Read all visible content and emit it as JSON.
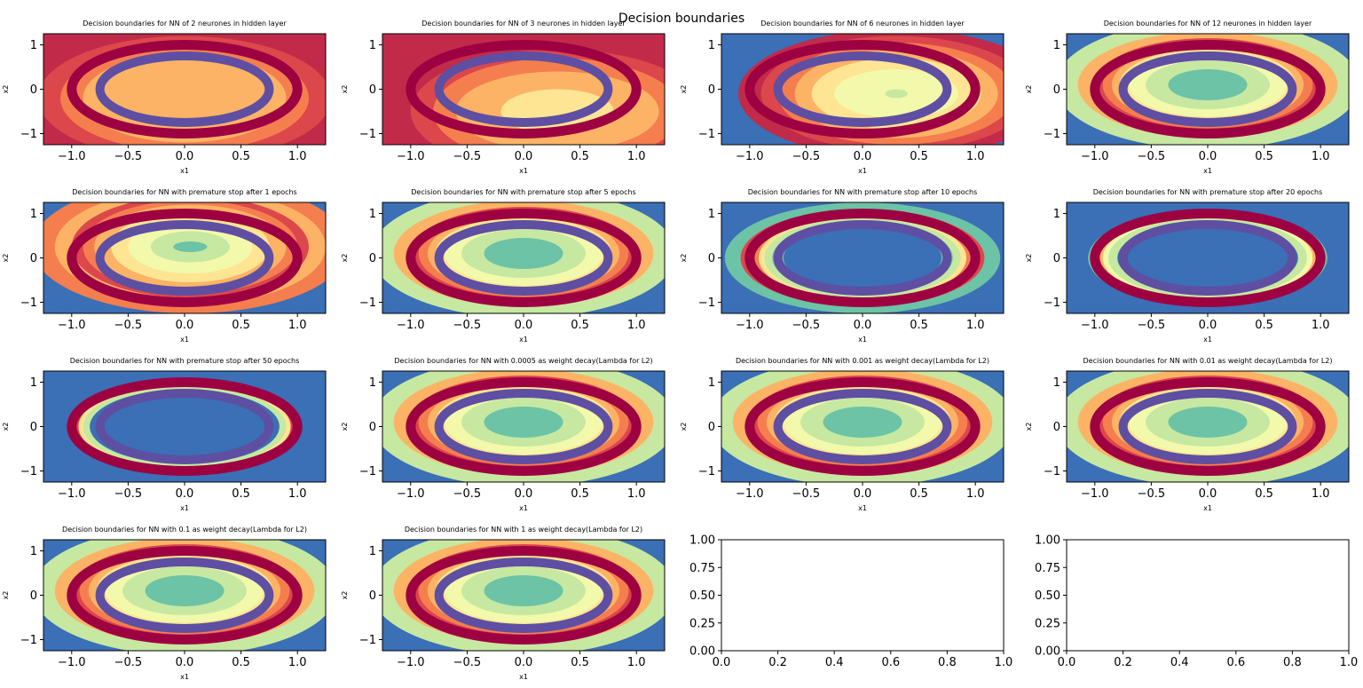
{
  "figure": {
    "suptitle": "Decision boundaries"
  },
  "colors": {
    "spectral": [
      "#3b6fb6",
      "#6cc3a6",
      "#c6e8a1",
      "#f2f9ab",
      "#fee593",
      "#fdb365",
      "#f57e4f",
      "#dc474b",
      "#c22a49"
    ],
    "outer_ring": "#9e0142",
    "inner_ring": "#5e4fa2",
    "axes_frame": "#000000"
  },
  "chart_data": [
    {
      "type": "contour",
      "title": "Decision boundaries for NN of 2 neurones in hidden layer",
      "xlabel": "x1",
      "ylabel": "x2",
      "xlim": [
        -1.25,
        1.25
      ],
      "ylim": [
        -1.25,
        1.25
      ],
      "xticks": [
        "−1.0",
        "−0.5",
        "0.0",
        "0.5",
        "1.0"
      ],
      "yticks": [
        "−1",
        "0",
        "1"
      ],
      "bands": [
        "#fdb365",
        "#f57e4f",
        "#dc474b",
        "#c22a49"
      ],
      "center": [
        0.0,
        -0.2
      ],
      "rx": [
        0.9,
        1.1,
        1.3,
        1.6
      ],
      "ry": [
        1.0,
        1.2,
        1.4,
        1.7
      ],
      "rings": {
        "outer": [
          1.0,
          1.0
        ],
        "inner": [
          0.75,
          0.75
        ]
      }
    },
    {
      "type": "contour",
      "title": "Decision boundaries for NN of 3 neurones in hidden layer",
      "xlabel": "x1",
      "ylabel": "x2",
      "xlim": [
        -1.25,
        1.25
      ],
      "ylim": [
        -1.25,
        1.25
      ],
      "xticks": [
        "−1.0",
        "−0.5",
        "0.0",
        "0.5",
        "1.0"
      ],
      "yticks": [
        "−1",
        "0",
        "1"
      ],
      "bands": [
        "#fee593",
        "#fdb365",
        "#f57e4f",
        "#dc474b",
        "#c22a49"
      ],
      "center": [
        0.3,
        -0.5
      ],
      "rx": [
        0.5,
        0.9,
        1.1,
        1.3,
        1.6
      ],
      "ry": [
        0.5,
        0.9,
        1.2,
        1.4,
        1.7
      ],
      "rings": {
        "outer": [
          1.0,
          1.0
        ],
        "inner": [
          0.75,
          0.75
        ]
      }
    },
    {
      "type": "contour",
      "title": "Decision boundaries for NN of 6 neurones in hidden layer",
      "xlabel": "x1",
      "ylabel": "x2",
      "xlim": [
        -1.25,
        1.25
      ],
      "ylim": [
        -1.25,
        1.25
      ],
      "xticks": [
        "−1.0",
        "−0.5",
        "0.0",
        "0.5",
        "1.0"
      ],
      "yticks": [
        "−1",
        "0",
        "1"
      ],
      "bands": [
        "#c6e8a1",
        "#f2f9ab",
        "#fee593",
        "#fdb365",
        "#f57e4f",
        "#dc474b",
        "#c22a49",
        "#3b6fb6"
      ],
      "center": [
        0.3,
        -0.1
      ],
      "rx": [
        0.1,
        0.55,
        0.75,
        0.9,
        1.05,
        1.2,
        1.4,
        1.6
      ],
      "ry": [
        0.1,
        0.55,
        0.8,
        1.0,
        1.15,
        1.3,
        1.45,
        1.7
      ],
      "rings": {
        "outer": [
          1.0,
          1.0
        ],
        "inner": [
          0.75,
          0.75
        ]
      }
    },
    {
      "type": "contour",
      "title": "Decision boundaries for NN of 12 neurones in hidden layer",
      "xlabel": "x1",
      "ylabel": "x2",
      "xlim": [
        -1.25,
        1.25
      ],
      "ylim": [
        -1.25,
        1.25
      ],
      "xticks": [
        "−1.0",
        "−0.5",
        "0.0",
        "0.5",
        "1.0"
      ],
      "yticks": [
        "−1",
        "0",
        "1"
      ],
      "bands": [
        "#6cc3a6",
        "#c6e8a1",
        "#f2f9ab",
        "#fee593",
        "#fdb365",
        "#f57e4f",
        "#dc474b",
        "#fdb365",
        "#c6e8a1",
        "#3b6fb6"
      ],
      "center": [
        0.0,
        0.1
      ],
      "rx": [
        0.35,
        0.55,
        0.7,
        0.78,
        0.85,
        0.93,
        1.0,
        1.15,
        1.35,
        1.7
      ],
      "ry": [
        0.35,
        0.55,
        0.72,
        0.82,
        0.9,
        0.98,
        1.05,
        1.2,
        1.45,
        1.75
      ],
      "rings": {
        "outer": [
          1.0,
          1.0
        ],
        "inner": [
          0.75,
          0.75
        ]
      }
    },
    {
      "type": "contour",
      "title": "Decision boundaries for NN with premature stop after 1 epochs",
      "xlabel": "x1",
      "ylabel": "x2",
      "xlim": [
        -1.25,
        1.25
      ],
      "ylim": [
        -1.25,
        1.25
      ],
      "xticks": [
        "−1.0",
        "−0.5",
        "0.0",
        "0.5",
        "1.0"
      ],
      "yticks": [
        "−1",
        "0",
        "1"
      ],
      "bands": [
        "#6cc3a6",
        "#c6e8a1",
        "#f2f9ab",
        "#fee593",
        "#fdb365",
        "#f57e4f",
        "#dc474b",
        "#fdb365",
        "#f57e4f",
        "#3b6fb6"
      ],
      "center": [
        0.05,
        0.25
      ],
      "rx": [
        0.15,
        0.35,
        0.55,
        0.7,
        0.85,
        0.95,
        1.05,
        1.2,
        1.4,
        1.75
      ],
      "ry": [
        0.12,
        0.35,
        0.6,
        0.8,
        0.95,
        1.05,
        1.15,
        1.3,
        1.5,
        1.8
      ],
      "rings": {
        "outer": [
          1.0,
          1.0
        ],
        "inner": [
          0.75,
          0.75
        ]
      }
    },
    {
      "type": "contour",
      "title": "Decision boundaries for NN with premature stop after 5 epochs",
      "xlabel": "x1",
      "ylabel": "x2",
      "xlim": [
        -1.25,
        1.25
      ],
      "ylim": [
        -1.25,
        1.25
      ],
      "xticks": [
        "−1.0",
        "−0.5",
        "0.0",
        "0.5",
        "1.0"
      ],
      "yticks": [
        "−1",
        "0",
        "1"
      ],
      "bands": [
        "#6cc3a6",
        "#c6e8a1",
        "#f2f9ab",
        "#fee593",
        "#fdb365",
        "#f57e4f",
        "#dc474b",
        "#fdb365",
        "#c6e8a1",
        "#3b6fb6"
      ],
      "center": [
        0.0,
        0.1
      ],
      "rx": [
        0.35,
        0.55,
        0.7,
        0.78,
        0.85,
        0.93,
        1.0,
        1.15,
        1.35,
        1.7
      ],
      "ry": [
        0.35,
        0.55,
        0.72,
        0.82,
        0.9,
        0.98,
        1.05,
        1.2,
        1.45,
        1.75
      ],
      "rings": {
        "outer": [
          1.0,
          1.0
        ],
        "inner": [
          0.75,
          0.75
        ]
      }
    },
    {
      "type": "contour",
      "title": "Decision boundaries for NN with premature stop after 10 epochs",
      "xlabel": "x1",
      "ylabel": "x2",
      "xlim": [
        -1.25,
        1.25
      ],
      "ylim": [
        -1.25,
        1.25
      ],
      "xticks": [
        "−1.0",
        "−0.5",
        "0.0",
        "0.5",
        "1.0"
      ],
      "yticks": [
        "−1",
        "0",
        "1"
      ],
      "bands": [
        "#3b6fb6",
        "#6cc3a6",
        "#c6e8a1",
        "#fee593",
        "#f57e4f",
        "#c22a49",
        "#dc474b",
        "#6cc3a6",
        "#3b6fb6"
      ],
      "center": [
        0.0,
        0.0
      ],
      "rx": [
        0.7,
        0.8,
        0.87,
        0.92,
        0.97,
        1.02,
        1.08,
        1.22,
        1.8
      ],
      "ry": [
        0.7,
        0.82,
        0.9,
        0.96,
        1.0,
        1.05,
        1.1,
        1.25,
        1.8
      ],
      "rings": {
        "outer": [
          1.0,
          1.0
        ],
        "inner": [
          0.75,
          0.75
        ]
      }
    },
    {
      "type": "contour",
      "title": "Decision boundaries for NN with premature stop after 20 epochs",
      "xlabel": "x1",
      "ylabel": "x2",
      "xlim": [
        -1.25,
        1.25
      ],
      "ylim": [
        -1.25,
        1.25
      ],
      "xticks": [
        "−1.0",
        "−0.5",
        "0.0",
        "0.5",
        "1.0"
      ],
      "yticks": [
        "−1",
        "0",
        "1"
      ],
      "bands": [
        "#3b6fb6",
        "#c6e8a1",
        "#f2f9ab",
        "#fdb365",
        "#dc474b",
        "#6cc3a6",
        "#3b6fb6"
      ],
      "center": [
        0.0,
        0.0
      ],
      "rx": [
        0.8,
        0.88,
        0.93,
        0.97,
        1.01,
        1.06,
        1.8
      ],
      "ry": [
        0.8,
        0.9,
        0.95,
        0.99,
        1.03,
        1.08,
        1.8
      ],
      "rings": {
        "outer": [
          1.0,
          1.0
        ],
        "inner": [
          0.75,
          0.75
        ]
      }
    },
    {
      "type": "contour",
      "title": "Decision boundaries for NN with premature stop after 50 epochs",
      "xlabel": "x1",
      "ylabel": "x2",
      "xlim": [
        -1.25,
        1.25
      ],
      "ylim": [
        -1.25,
        1.25
      ],
      "xticks": [
        "−1.0",
        "−0.5",
        "0.0",
        "0.5",
        "1.0"
      ],
      "yticks": [
        "−1",
        "0",
        "1"
      ],
      "bands": [
        "#3b6fb6",
        "#c6e8a1",
        "#fee593",
        "#dc474b",
        "#6cc3a6",
        "#3b6fb6"
      ],
      "center": [
        0.0,
        0.0
      ],
      "rx": [
        0.84,
        0.9,
        0.94,
        0.98,
        1.02,
        1.8
      ],
      "ry": [
        0.84,
        0.92,
        0.96,
        1.0,
        1.04,
        1.8
      ],
      "rings": {
        "outer": [
          1.0,
          1.0
        ],
        "inner": [
          0.75,
          0.75
        ]
      }
    },
    {
      "type": "contour",
      "title": "Decision boundaries for NN with 0.0005  as weight decay(Lambda for L2)",
      "xlabel": "x1",
      "ylabel": "x2",
      "xlim": [
        -1.25,
        1.25
      ],
      "ylim": [
        -1.25,
        1.25
      ],
      "xticks": [
        "−1.0",
        "−0.5",
        "0.0",
        "0.5",
        "1.0"
      ],
      "yticks": [
        "−1",
        "0",
        "1"
      ],
      "bands": [
        "#6cc3a6",
        "#c6e8a1",
        "#f2f9ab",
        "#fee593",
        "#fdb365",
        "#f57e4f",
        "#dc474b",
        "#fdb365",
        "#c6e8a1",
        "#3b6fb6"
      ],
      "center": [
        0.0,
        0.1
      ],
      "rx": [
        0.35,
        0.55,
        0.7,
        0.78,
        0.85,
        0.93,
        1.0,
        1.15,
        1.35,
        1.7
      ],
      "ry": [
        0.35,
        0.55,
        0.72,
        0.82,
        0.9,
        0.98,
        1.05,
        1.2,
        1.45,
        1.75
      ],
      "rings": {
        "outer": [
          1.0,
          1.0
        ],
        "inner": [
          0.75,
          0.75
        ]
      }
    },
    {
      "type": "contour",
      "title": "Decision boundaries for NN with 0.001  as weight decay(Lambda for L2)",
      "xlabel": "x1",
      "ylabel": "x2",
      "xlim": [
        -1.25,
        1.25
      ],
      "ylim": [
        -1.25,
        1.25
      ],
      "xticks": [
        "−1.0",
        "−0.5",
        "0.0",
        "0.5",
        "1.0"
      ],
      "yticks": [
        "−1",
        "0",
        "1"
      ],
      "bands": [
        "#6cc3a6",
        "#c6e8a1",
        "#f2f9ab",
        "#fee593",
        "#fdb365",
        "#f57e4f",
        "#dc474b",
        "#fdb365",
        "#c6e8a1",
        "#3b6fb6"
      ],
      "center": [
        0.0,
        0.1
      ],
      "rx": [
        0.35,
        0.55,
        0.7,
        0.78,
        0.85,
        0.93,
        1.0,
        1.15,
        1.35,
        1.7
      ],
      "ry": [
        0.35,
        0.55,
        0.72,
        0.82,
        0.9,
        0.98,
        1.05,
        1.2,
        1.45,
        1.75
      ],
      "rings": {
        "outer": [
          1.0,
          1.0
        ],
        "inner": [
          0.75,
          0.75
        ]
      }
    },
    {
      "type": "contour",
      "title": "Decision boundaries for NN with 0.01  as weight decay(Lambda for L2)",
      "xlabel": "x1",
      "ylabel": "x2",
      "xlim": [
        -1.25,
        1.25
      ],
      "ylim": [
        -1.25,
        1.25
      ],
      "xticks": [
        "−1.0",
        "−0.5",
        "0.0",
        "0.5",
        "1.0"
      ],
      "yticks": [
        "−1",
        "0",
        "1"
      ],
      "bands": [
        "#6cc3a6",
        "#c6e8a1",
        "#f2f9ab",
        "#fee593",
        "#fdb365",
        "#f57e4f",
        "#dc474b",
        "#fdb365",
        "#c6e8a1",
        "#3b6fb6"
      ],
      "center": [
        0.0,
        0.1
      ],
      "rx": [
        0.35,
        0.55,
        0.7,
        0.78,
        0.85,
        0.93,
        1.0,
        1.15,
        1.35,
        1.7
      ],
      "ry": [
        0.35,
        0.55,
        0.72,
        0.82,
        0.9,
        0.98,
        1.05,
        1.2,
        1.45,
        1.75
      ],
      "rings": {
        "outer": [
          1.0,
          1.0
        ],
        "inner": [
          0.75,
          0.75
        ]
      }
    },
    {
      "type": "contour",
      "title": "Decision boundaries for NN with 0.1  as weight decay(Lambda for L2)",
      "xlabel": "x1",
      "ylabel": "x2",
      "xlim": [
        -1.25,
        1.25
      ],
      "ylim": [
        -1.25,
        1.25
      ],
      "xticks": [
        "−1.0",
        "−0.5",
        "0.0",
        "0.5",
        "1.0"
      ],
      "yticks": [
        "−1",
        "0",
        "1"
      ],
      "bands": [
        "#6cc3a6",
        "#c6e8a1",
        "#f2f9ab",
        "#fee593",
        "#fdb365",
        "#f57e4f",
        "#dc474b",
        "#fdb365",
        "#c6e8a1",
        "#3b6fb6"
      ],
      "center": [
        0.0,
        0.1
      ],
      "rx": [
        0.35,
        0.55,
        0.7,
        0.78,
        0.85,
        0.93,
        1.0,
        1.15,
        1.35,
        1.7
      ],
      "ry": [
        0.35,
        0.55,
        0.72,
        0.82,
        0.9,
        0.98,
        1.05,
        1.2,
        1.45,
        1.75
      ],
      "rings": {
        "outer": [
          1.0,
          1.0
        ],
        "inner": [
          0.75,
          0.75
        ]
      }
    },
    {
      "type": "contour",
      "title": "Decision boundaries for NN with 1  as weight decay(Lambda for L2)",
      "xlabel": "x1",
      "ylabel": "x2",
      "xlim": [
        -1.25,
        1.25
      ],
      "ylim": [
        -1.25,
        1.25
      ],
      "xticks": [
        "−1.0",
        "−0.5",
        "0.0",
        "0.5",
        "1.0"
      ],
      "yticks": [
        "−1",
        "0",
        "1"
      ],
      "bands": [
        "#6cc3a6",
        "#c6e8a1",
        "#f2f9ab",
        "#fee593",
        "#fdb365",
        "#f57e4f",
        "#dc474b",
        "#fdb365",
        "#c6e8a1",
        "#3b6fb6"
      ],
      "center": [
        0.0,
        0.1
      ],
      "rx": [
        0.35,
        0.55,
        0.7,
        0.78,
        0.85,
        0.93,
        1.0,
        1.15,
        1.35,
        1.7
      ],
      "ry": [
        0.35,
        0.55,
        0.72,
        0.82,
        0.9,
        0.98,
        1.05,
        1.2,
        1.45,
        1.75
      ],
      "rings": {
        "outer": [
          1.0,
          1.0
        ],
        "inner": [
          0.75,
          0.75
        ]
      }
    },
    {
      "type": "empty",
      "title": "",
      "xlabel": "",
      "ylabel": "",
      "xlim": [
        0,
        1
      ],
      "ylim": [
        0,
        1
      ],
      "xticks": [
        "0.0",
        "0.2",
        "0.4",
        "0.6",
        "0.8",
        "1.0"
      ],
      "yticks": [
        "0.00",
        "0.25",
        "0.50",
        "0.75",
        "1.00"
      ]
    },
    {
      "type": "empty",
      "title": "",
      "xlabel": "",
      "ylabel": "",
      "xlim": [
        0,
        1
      ],
      "ylim": [
        0,
        1
      ],
      "xticks": [
        "0.0",
        "0.2",
        "0.4",
        "0.6",
        "0.8",
        "1.0"
      ],
      "yticks": [
        "0.00",
        "0.25",
        "0.50",
        "0.75",
        "1.00"
      ]
    }
  ]
}
